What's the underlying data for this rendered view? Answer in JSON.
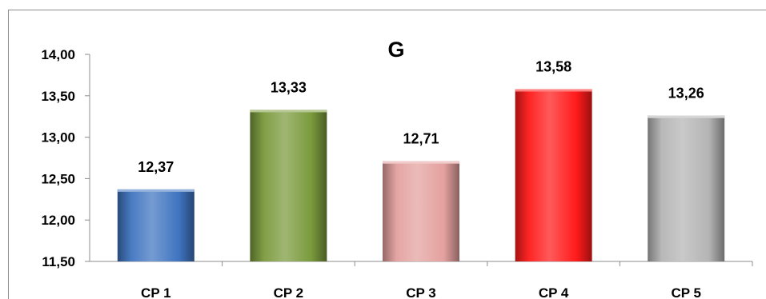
{
  "chart_data": {
    "type": "bar",
    "title": "G",
    "categories": [
      "CP 1",
      "CP 2",
      "CP 3",
      "CP 4",
      "CP 5"
    ],
    "values": [
      12.37,
      13.33,
      12.71,
      13.58,
      13.26
    ],
    "data_labels": [
      "12,37",
      "13,33",
      "12,71",
      "13,58",
      "13,26"
    ],
    "ylim": [
      11.5,
      14.0
    ],
    "yticks": [
      11.5,
      12.0,
      12.5,
      13.0,
      13.5,
      14.0
    ],
    "ytick_labels": [
      "11,50",
      "12,00",
      "12,50",
      "13,00",
      "13,50",
      "14,00"
    ],
    "xlabel": "",
    "ylabel": "",
    "grid": false,
    "legend": "none",
    "bar_colors": [
      "#3f74c0",
      "#7a9a3c",
      "#e3a09e",
      "#ff1a1a",
      "#b4b4b4"
    ]
  }
}
